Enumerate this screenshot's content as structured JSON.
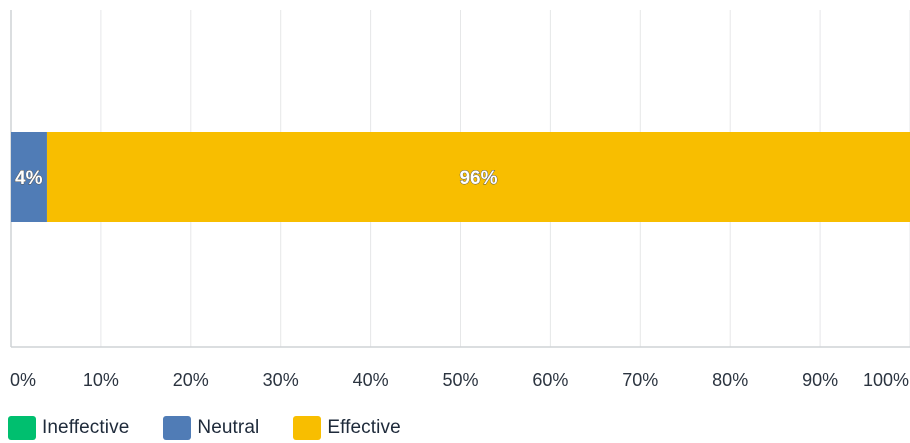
{
  "chart_data": {
    "type": "bar",
    "orientation": "horizontal",
    "stacked": true,
    "categories": [
      ""
    ],
    "series": [
      {
        "name": "Ineffective",
        "values": [
          0
        ],
        "color": "#00bf6f",
        "label": ""
      },
      {
        "name": "Neutral",
        "values": [
          4
        ],
        "color": "#507cb6",
        "label": "4%"
      },
      {
        "name": "Effective",
        "values": [
          96
        ],
        "color": "#f8be00",
        "label": "96%"
      }
    ],
    "x_ticks": [
      "0%",
      "10%",
      "20%",
      "30%",
      "40%",
      "50%",
      "60%",
      "70%",
      "80%",
      "90%",
      "100%"
    ],
    "xlim": [
      0,
      100
    ],
    "grid": true,
    "legend_position": "bottom-left"
  }
}
